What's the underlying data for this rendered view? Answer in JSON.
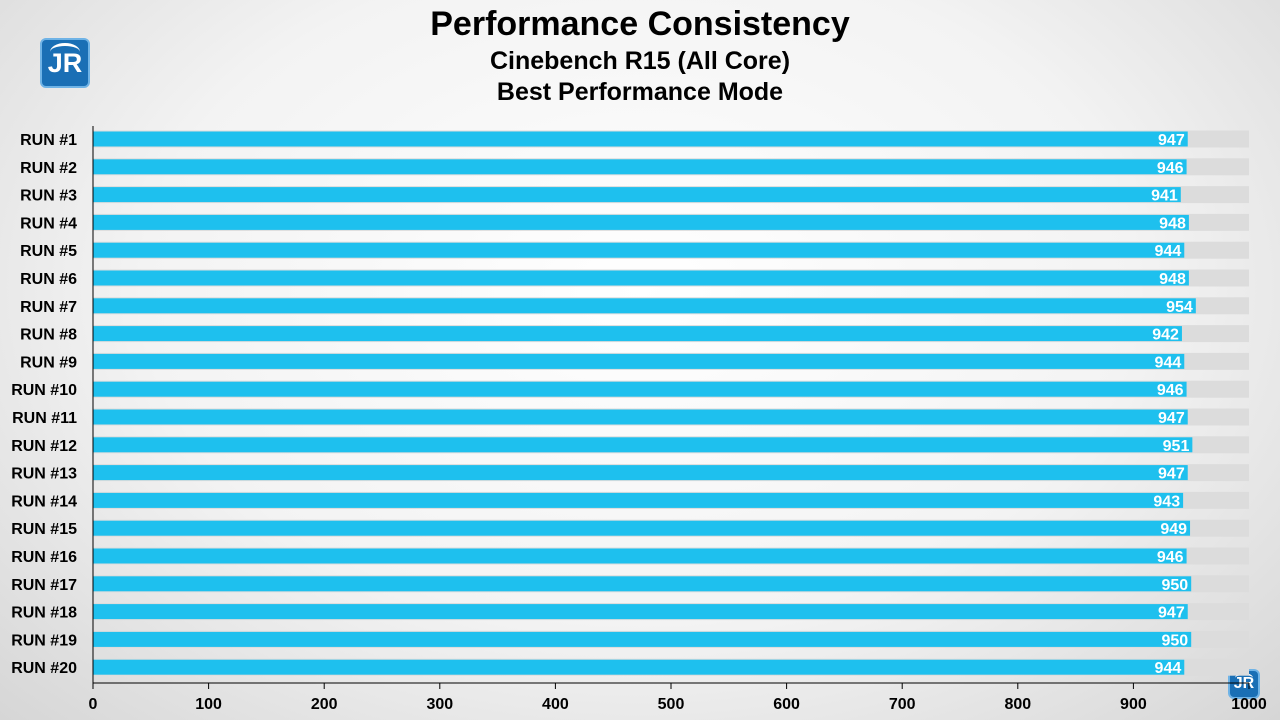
{
  "brand": {
    "logo_text": "JR",
    "logo_small_text": "JR"
  },
  "chart_data": {
    "type": "bar",
    "orientation": "horizontal",
    "title": "Performance Consistency",
    "subtitle": "Cinebench R15 (All Core)",
    "subtitle2": "Best Performance Mode",
    "categories": [
      "RUN #1",
      "RUN #2",
      "RUN #3",
      "RUN #4",
      "RUN #5",
      "RUN #6",
      "RUN #7",
      "RUN #8",
      "RUN #9",
      "RUN #10",
      "RUN #11",
      "RUN #12",
      "RUN #13",
      "RUN #14",
      "RUN #15",
      "RUN #16",
      "RUN #17",
      "RUN #18",
      "RUN #19",
      "RUN #20"
    ],
    "values": [
      947,
      946,
      941,
      948,
      944,
      948,
      954,
      942,
      944,
      946,
      947,
      951,
      947,
      943,
      949,
      946,
      950,
      947,
      950,
      944
    ],
    "xlim": [
      0,
      1000
    ],
    "xticks": [
      0,
      100,
      200,
      300,
      400,
      500,
      600,
      700,
      800,
      900,
      1000
    ],
    "data_labels": true,
    "grid": false,
    "legend": "none",
    "colors": {
      "bar": "#1ec0ee",
      "band": "#dcdcdc",
      "label": "#ffffff",
      "axis": "#000000"
    }
  }
}
